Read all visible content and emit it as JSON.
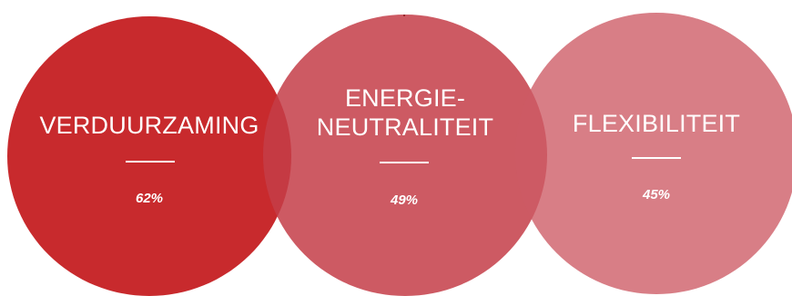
{
  "diagram": {
    "circles": [
      {
        "label": "VERDUURZAMING",
        "value": "62%",
        "color": "#c82a2d",
        "opacity": 1.0
      },
      {
        "label": "ENERGIE-\nNEUTRALITEIT",
        "value": "49%",
        "color": "#c43d48",
        "opacity": 0.85
      },
      {
        "label": "FLEXIBILITEIT",
        "value": "45%",
        "color": "#cd5a64",
        "opacity": 0.78
      }
    ]
  }
}
